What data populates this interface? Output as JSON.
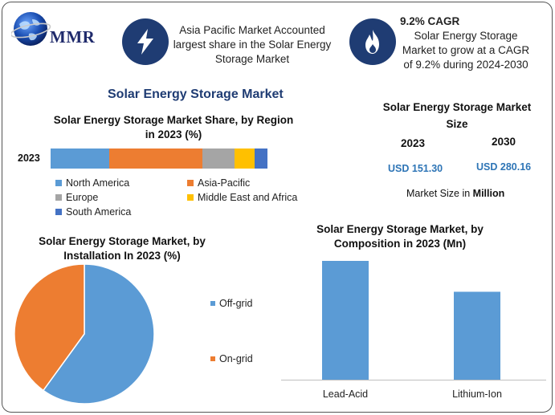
{
  "logo": {
    "text": "MMR"
  },
  "header": {
    "box1": {
      "lines": [
        "Asia Pacific Market Accounted",
        "largest share in the Solar Energy",
        "Storage Market"
      ],
      "icon": "lightning-bolt-icon"
    },
    "box2": {
      "heading": "9.2% CAGR",
      "lines": [
        "Solar Energy Storage",
        "Market to grow at a CAGR",
        "of 9.2% during 2024-2030"
      ],
      "icon": "flame-icon"
    }
  },
  "main_title": "Solar Energy Storage Market",
  "market_size": {
    "title_line1": "Solar Energy Storage Market",
    "title_line2": "Size",
    "year1": "2023",
    "year2": "2030",
    "value1": "USD 151.30",
    "value2": "USD 280.16",
    "note_prefix": "Market Size in ",
    "note_unit": "Million"
  },
  "colors": {
    "north_america": "#5b9bd5",
    "asia_pacific": "#ed7d31",
    "europe": "#a5a5a5",
    "mea": "#ffc000",
    "south_america": "#4472c4",
    "off_grid": "#5b9bd5",
    "on_grid": "#ed7d31",
    "bar": "#5b9bd5",
    "icon_bg": "#1f3c73"
  },
  "chart_data": [
    {
      "type": "bar",
      "orientation": "horizontal-stacked",
      "title_line1": "Solar Energy Storage Market Share, by Region",
      "title_line2": "in 2023 (%)",
      "categories": [
        "2023"
      ],
      "series": [
        {
          "name": "North America",
          "values": [
            27
          ]
        },
        {
          "name": "Asia-Pacific",
          "values": [
            43
          ]
        },
        {
          "name": "Europe",
          "values": [
            15
          ]
        },
        {
          "name": "Middle East and Africa",
          "values": [
            9
          ]
        },
        {
          "name": "South America",
          "values": [
            6
          ]
        }
      ],
      "xlim": [
        0,
        100
      ],
      "legend": "bottom"
    },
    {
      "type": "pie",
      "title_line1": "Solar Energy Storage Market, by",
      "title_line2": "Installation In 2023 (%)",
      "labels": [
        "Off-grid",
        "On-grid"
      ],
      "values": [
        60,
        40
      ],
      "legend": "right"
    },
    {
      "type": "bar",
      "title_line1": "Solar Energy Storage Market, by",
      "title_line2": "Composition in 2023 (Mn)",
      "categories": [
        "Lead-Acid",
        "Lithium-Ion"
      ],
      "values": [
        100,
        74
      ],
      "ylim": [
        0,
        100
      ]
    }
  ]
}
